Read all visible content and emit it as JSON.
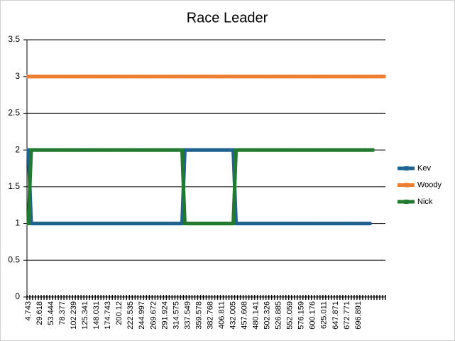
{
  "chart_data": {
    "type": "line",
    "title": "Race Leader",
    "categories": [
      "4.743",
      null,
      null,
      null,
      "29.618",
      null,
      null,
      null,
      "53.444",
      null,
      null,
      null,
      "78.377",
      null,
      null,
      null,
      "102.239",
      null,
      null,
      null,
      "125.341",
      null,
      null,
      null,
      "148.031",
      null,
      null,
      null,
      "174.743",
      null,
      null,
      null,
      "200.12",
      null,
      null,
      null,
      "222.535",
      null,
      null,
      null,
      "244.997",
      null,
      null,
      null,
      "269.672",
      null,
      null,
      null,
      "291.924",
      null,
      null,
      null,
      "314.575",
      null,
      null,
      null,
      "337.549",
      null,
      null,
      null,
      "359.578",
      null,
      null,
      null,
      "382.768",
      null,
      null,
      null,
      "406.811",
      null,
      null,
      null,
      "432.005",
      null,
      null,
      null,
      "457.608",
      null,
      null,
      null,
      "480.141",
      null,
      null,
      null,
      "502.326",
      null,
      null,
      null,
      "526.885",
      null,
      null,
      null,
      "552.059",
      null,
      null,
      null,
      "576.159",
      null,
      null,
      null,
      "600.176",
      null,
      null,
      null,
      "625.011",
      null,
      null,
      null,
      "647.871",
      null,
      null,
      null,
      "672.771",
      null,
      null,
      null,
      "696.891",
      null,
      null,
      null,
      null,
      null,
      null,
      null,
      null,
      null
    ],
    "series": [
      {
        "name": "Kev",
        "color": "#1f6391",
        "values": [
          2,
          1,
          1,
          1,
          1,
          1,
          1,
          1,
          1,
          1,
          1,
          1,
          1,
          1,
          1,
          1,
          1,
          1,
          1,
          1,
          1,
          1,
          1,
          1,
          1,
          1,
          1,
          1,
          1,
          1,
          1,
          1,
          1,
          1,
          1,
          1,
          1,
          1,
          1,
          1,
          1,
          1,
          1,
          1,
          1,
          1,
          1,
          1,
          1,
          1,
          1,
          1,
          1,
          1,
          1,
          2,
          2,
          2,
          2,
          2,
          2,
          2,
          2,
          2,
          2,
          2,
          2,
          2,
          2,
          2,
          2,
          2,
          2,
          1,
          1,
          1,
          1,
          1,
          1,
          1,
          1,
          1,
          1,
          1,
          1,
          1,
          1,
          1,
          1,
          1,
          1,
          1,
          1,
          1,
          1,
          1,
          1,
          1,
          1,
          1,
          1,
          1,
          1,
          1,
          1,
          1,
          1,
          1,
          1,
          1,
          1,
          1,
          1,
          1,
          1,
          1,
          1,
          1,
          1,
          1,
          1,
          null,
          null,
          null,
          null,
          null
        ]
      },
      {
        "name": "Woody",
        "color": "#ed7d31",
        "values": [
          3,
          3,
          3,
          3,
          3,
          3,
          3,
          3,
          3,
          3,
          3,
          3,
          3,
          3,
          3,
          3,
          3,
          3,
          3,
          3,
          3,
          3,
          3,
          3,
          3,
          3,
          3,
          3,
          3,
          3,
          3,
          3,
          3,
          3,
          3,
          3,
          3,
          3,
          3,
          3,
          3,
          3,
          3,
          3,
          3,
          3,
          3,
          3,
          3,
          3,
          3,
          3,
          3,
          3,
          3,
          3,
          3,
          3,
          3,
          3,
          3,
          3,
          3,
          3,
          3,
          3,
          3,
          3,
          3,
          3,
          3,
          3,
          3,
          3,
          3,
          3,
          3,
          3,
          3,
          3,
          3,
          3,
          3,
          3,
          3,
          3,
          3,
          3,
          3,
          3,
          3,
          3,
          3,
          3,
          3,
          3,
          3,
          3,
          3,
          3,
          3,
          3,
          3,
          3,
          3,
          3,
          3,
          3,
          3,
          3,
          3,
          3,
          3,
          3,
          3,
          3,
          3,
          3,
          3,
          3,
          3,
          3,
          3,
          3,
          3,
          3
        ]
      },
      {
        "name": "Nick",
        "color": "#217a2f",
        "values": [
          1,
          2,
          2,
          2,
          2,
          2,
          2,
          2,
          2,
          2,
          2,
          2,
          2,
          2,
          2,
          2,
          2,
          2,
          2,
          2,
          2,
          2,
          2,
          2,
          2,
          2,
          2,
          2,
          2,
          2,
          2,
          2,
          2,
          2,
          2,
          2,
          2,
          2,
          2,
          2,
          2,
          2,
          2,
          2,
          2,
          2,
          2,
          2,
          2,
          2,
          2,
          2,
          2,
          2,
          2,
          1,
          1,
          1,
          1,
          1,
          1,
          1,
          1,
          1,
          1,
          1,
          1,
          1,
          1,
          1,
          1,
          1,
          1,
          2,
          2,
          2,
          2,
          2,
          2,
          2,
          2,
          2,
          2,
          2,
          2,
          2,
          2,
          2,
          2,
          2,
          2,
          2,
          2,
          2,
          2,
          2,
          2,
          2,
          2,
          2,
          2,
          2,
          2,
          2,
          2,
          2,
          2,
          2,
          2,
          2,
          2,
          2,
          2,
          2,
          2,
          2,
          2,
          2,
          2,
          2,
          2,
          2,
          null,
          null,
          null,
          null
        ]
      }
    ],
    "ylim": [
      0,
      3.5
    ],
    "yticks": [
      0,
      0.5,
      1,
      1.5,
      2,
      2.5,
      3,
      3.5
    ],
    "grid": true,
    "legend": "right"
  }
}
